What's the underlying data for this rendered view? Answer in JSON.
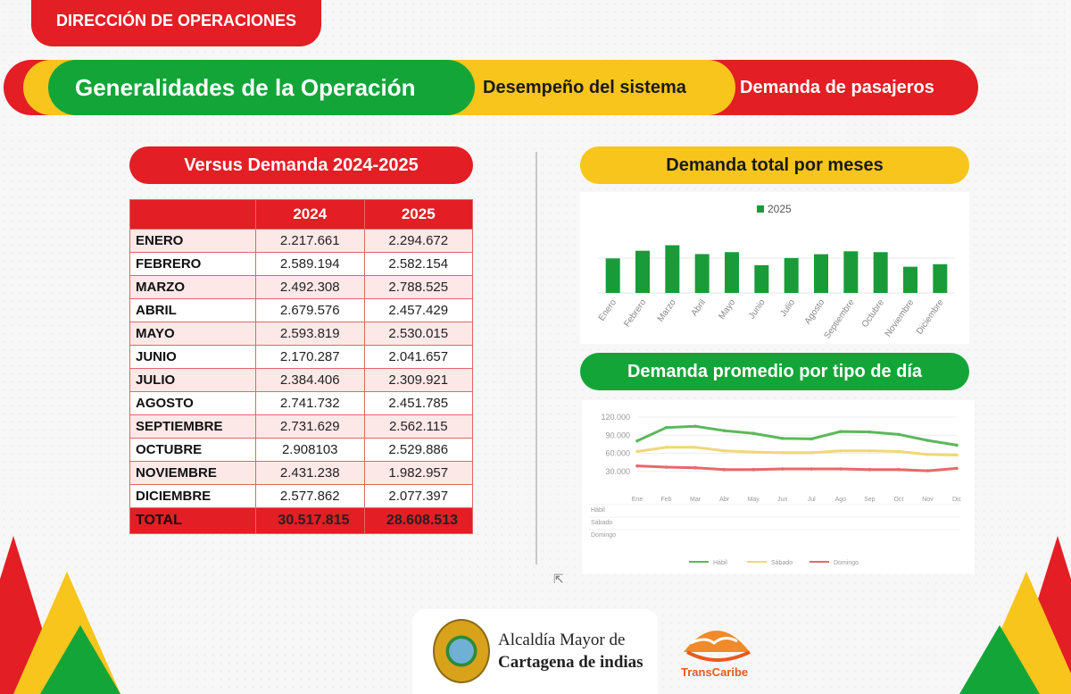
{
  "header": {
    "badge": "DIRECCIÓN DE OPERACIONES",
    "tabs": [
      "Generalidades de la Operación",
      "Desempeño del sistema",
      "Demanda de pasajeros"
    ]
  },
  "versus": {
    "title": "Versus Demanda 2024-2025",
    "columns": [
      "",
      "2024",
      "2025"
    ],
    "rows": [
      [
        "ENERO",
        "2.217.661",
        "2.294.672"
      ],
      [
        "FEBRERO",
        "2.589.194",
        "2.582.154"
      ],
      [
        "MARZO",
        "2.492.308",
        "2.788.525"
      ],
      [
        "ABRIL",
        "2.679.576",
        "2.457.429"
      ],
      [
        "MAYO",
        "2.593.819",
        "2.530.015"
      ],
      [
        "JUNIO",
        "2.170.287",
        "2.041.657"
      ],
      [
        "JULIO",
        "2.384.406",
        "2.309.921"
      ],
      [
        "AGOSTO",
        "2.741.732",
        "2.451.785"
      ],
      [
        "SEPTIEMBRE",
        "2.731.629",
        "2.562.115"
      ],
      [
        "OCTUBRE",
        "2.908103",
        "2.529.886"
      ],
      [
        "NOVIEMBRE",
        "2.431.238",
        "1.982.957"
      ],
      [
        "DICIEMBRE",
        "2.577.862",
        "2.077.397"
      ]
    ],
    "total": [
      "TOTAL",
      "30.517.815",
      "28.608.513"
    ]
  },
  "chart_data": [
    {
      "type": "bar",
      "title": "Demanda total por meses",
      "categories": [
        "Enero",
        "Febrero",
        "Marzo",
        "Abril",
        "Mayo",
        "Junio",
        "Julio",
        "Agosto",
        "Septiembre",
        "Octubre",
        "Noviembre",
        "Diciembre"
      ],
      "series": [
        {
          "name": "2025",
          "values": [
            2294672,
            2582154,
            2788525,
            2457429,
            2530015,
            2041657,
            2309921,
            2451785,
            2562115,
            2529886,
            1982957,
            2077397
          ]
        }
      ],
      "ylim": [
        0,
        3000000
      ],
      "legend": "top",
      "color": "#1a9b3a"
    },
    {
      "type": "line",
      "title": "Demanda promedio por tipo de día",
      "categories": [
        "Ene",
        "Feb",
        "Mar",
        "Abr",
        "May",
        "Jun",
        "Jul",
        "Ago",
        "Sep",
        "Oct",
        "Nov",
        "Dic"
      ],
      "yticks": [
        "120.000",
        "90.000",
        "60.000",
        "30.000"
      ],
      "ylim": [
        0,
        120000
      ],
      "series": [
        {
          "name": "Hábil",
          "color": "#5cb85c",
          "values": [
            80600,
            102700,
            104800,
            97500,
            93000,
            84700,
            83900,
            96100,
            95300,
            91300,
            81300,
            73500
          ]
        },
        {
          "name": "Sábado",
          "color": "#f0d77a",
          "values": [
            63000,
            70000,
            70000,
            64000,
            62000,
            61000,
            61000,
            64000,
            64000,
            63000,
            58000,
            57000
          ]
        },
        {
          "name": "Domingo",
          "color": "#e8686a",
          "values": [
            39000,
            37000,
            36000,
            33000,
            33000,
            34000,
            34000,
            34000,
            33000,
            33000,
            31000,
            35000
          ]
        }
      ],
      "legend": "bottom",
      "grid": true
    }
  ],
  "footer": {
    "org_line1": "Alcaldía Mayor de",
    "org_line2": "Cartagena de indias",
    "brand": "TransCaribe"
  },
  "colors": {
    "red": "#e31e24",
    "yellow": "#f7c51c",
    "green": "#13a538"
  }
}
